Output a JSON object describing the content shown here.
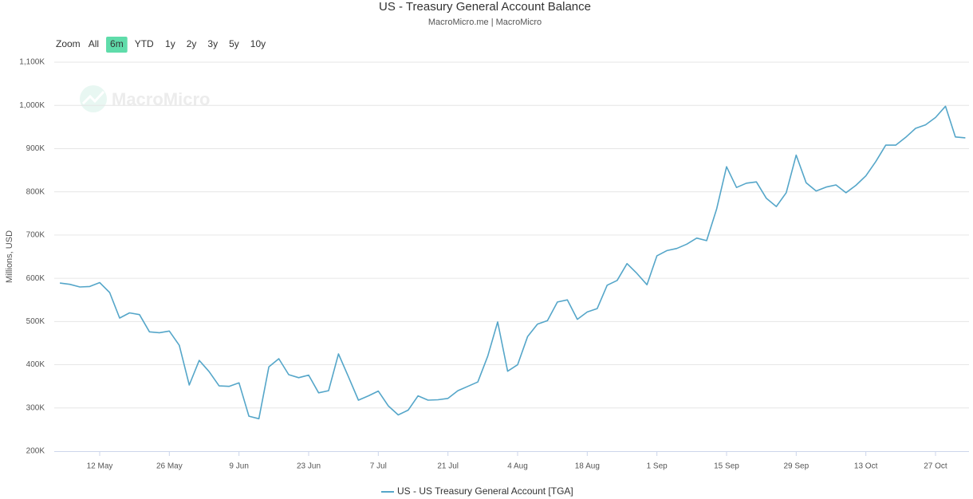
{
  "range_selector": {
    "label": "Zoom",
    "buttons": [
      "All",
      "6m",
      "YTD",
      "1y",
      "2y",
      "3y",
      "5y",
      "10y"
    ],
    "active_button": 1
  },
  "watermark": "MacroMicro",
  "chart_data": {
    "type": "line",
    "title": "US - Treasury General Account Balance",
    "subtitle": "MacroMicro.me | MacroMicro",
    "y_label": "Millions, USD",
    "categories": [
      null,
      null,
      null,
      null,
      "12 May",
      null,
      null,
      null,
      null,
      null,
      null,
      "26 May",
      null,
      null,
      null,
      null,
      null,
      null,
      "9 Jun",
      null,
      null,
      null,
      null,
      null,
      null,
      "23 Jun",
      null,
      null,
      null,
      null,
      null,
      null,
      "7 Jul",
      null,
      null,
      null,
      null,
      null,
      null,
      "21 Jul",
      null,
      null,
      null,
      null,
      null,
      null,
      "4 Aug",
      null,
      null,
      null,
      null,
      null,
      null,
      "18 Aug",
      null,
      null,
      null,
      null,
      null,
      null,
      "1 Sep",
      null,
      null,
      null,
      null,
      null,
      null,
      "15 Sep",
      null,
      null,
      null,
      null,
      null,
      null,
      "29 Sep",
      null,
      null,
      null,
      null,
      null,
      null,
      "13 Oct",
      null,
      null,
      null,
      null,
      null,
      null,
      "27 Oct",
      null,
      null,
      null
    ],
    "series": [
      {
        "name": "US - US Treasury General Account [TGA]",
        "color": "#55a6c9",
        "values": [
          589000,
          586000,
          580000,
          581000,
          590000,
          567000,
          508000,
          520000,
          516000,
          476000,
          474000,
          478000,
          445000,
          353000,
          410000,
          384000,
          351000,
          350000,
          358000,
          281000,
          275000,
          395000,
          414000,
          377000,
          370000,
          376000,
          335000,
          340000,
          425000,
          372000,
          318000,
          328000,
          339000,
          305000,
          284000,
          295000,
          328000,
          318000,
          319000,
          322000,
          340000,
          350000,
          360000,
          420000,
          499000,
          385000,
          400000,
          465000,
          494000,
          502000,
          545000,
          550000,
          505000,
          522000,
          530000,
          584000,
          595000,
          634000,
          611000,
          585000,
          652000,
          664000,
          669000,
          679000,
          693000,
          687000,
          760000,
          858000,
          810000,
          820000,
          823000,
          785000,
          766000,
          798000,
          885000,
          821000,
          802000,
          811000,
          816000,
          798000,
          815000,
          837000,
          870000,
          908000,
          908000,
          926000,
          947000,
          955000,
          972000,
          998000,
          927000,
          925000
        ]
      }
    ],
    "ylim": [
      200000,
      1100000
    ],
    "yticks": [
      {
        "value": 200000,
        "label": "200K"
      },
      {
        "value": 300000,
        "label": "300K"
      },
      {
        "value": 400000,
        "label": "400K"
      },
      {
        "value": 500000,
        "label": "500K"
      },
      {
        "value": 600000,
        "label": "600K"
      },
      {
        "value": 700000,
        "label": "700K"
      },
      {
        "value": 800000,
        "label": "800K"
      },
      {
        "value": 900000,
        "label": "900K"
      },
      {
        "value": 1000000,
        "label": "1,000K"
      },
      {
        "value": 1100000,
        "label": "1,100K"
      }
    ],
    "grid": true
  }
}
